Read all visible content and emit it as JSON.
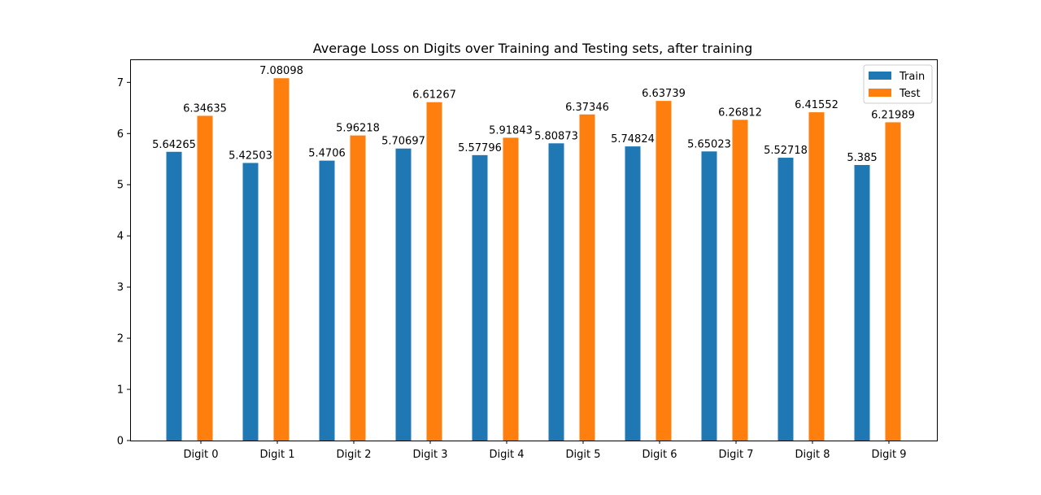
{
  "chart_data": {
    "type": "bar",
    "title": "Average Loss on Digits over Training and Testing sets, after training",
    "xlabel": "",
    "ylabel": "",
    "categories": [
      "Digit 0",
      "Digit 1",
      "Digit 2",
      "Digit 3",
      "Digit 4",
      "Digit 5",
      "Digit 6",
      "Digit 7",
      "Digit 8",
      "Digit 9"
    ],
    "series": [
      {
        "name": "Train",
        "color": "#1f77b4",
        "values": [
          5.64265,
          5.42503,
          5.4706,
          5.70697,
          5.57796,
          5.80873,
          5.74824,
          5.65023,
          5.52718,
          5.385
        ],
        "labels": [
          "5.64265",
          "5.42503",
          "5.4706",
          "5.70697",
          "5.57796",
          "5.80873",
          "5.74824",
          "5.65023",
          "5.52718",
          "5.385"
        ]
      },
      {
        "name": "Test",
        "color": "#ff7f0e",
        "values": [
          6.34635,
          7.08098,
          5.96218,
          6.61267,
          5.91843,
          6.37346,
          6.63739,
          6.26812,
          6.41552,
          6.21989
        ],
        "labels": [
          "6.34635",
          "7.08098",
          "5.96218",
          "6.61267",
          "5.91843",
          "6.37346",
          "6.63739",
          "6.26812",
          "6.41552",
          "6.21989"
        ]
      }
    ],
    "ylim": [
      0,
      7.45
    ],
    "yticks": [
      0,
      1,
      2,
      3,
      4,
      5,
      6,
      7
    ],
    "ytick_labels": [
      "0",
      "1",
      "2",
      "3",
      "4",
      "5",
      "6",
      "7"
    ],
    "grid": false,
    "legend_position": "top-right"
  }
}
